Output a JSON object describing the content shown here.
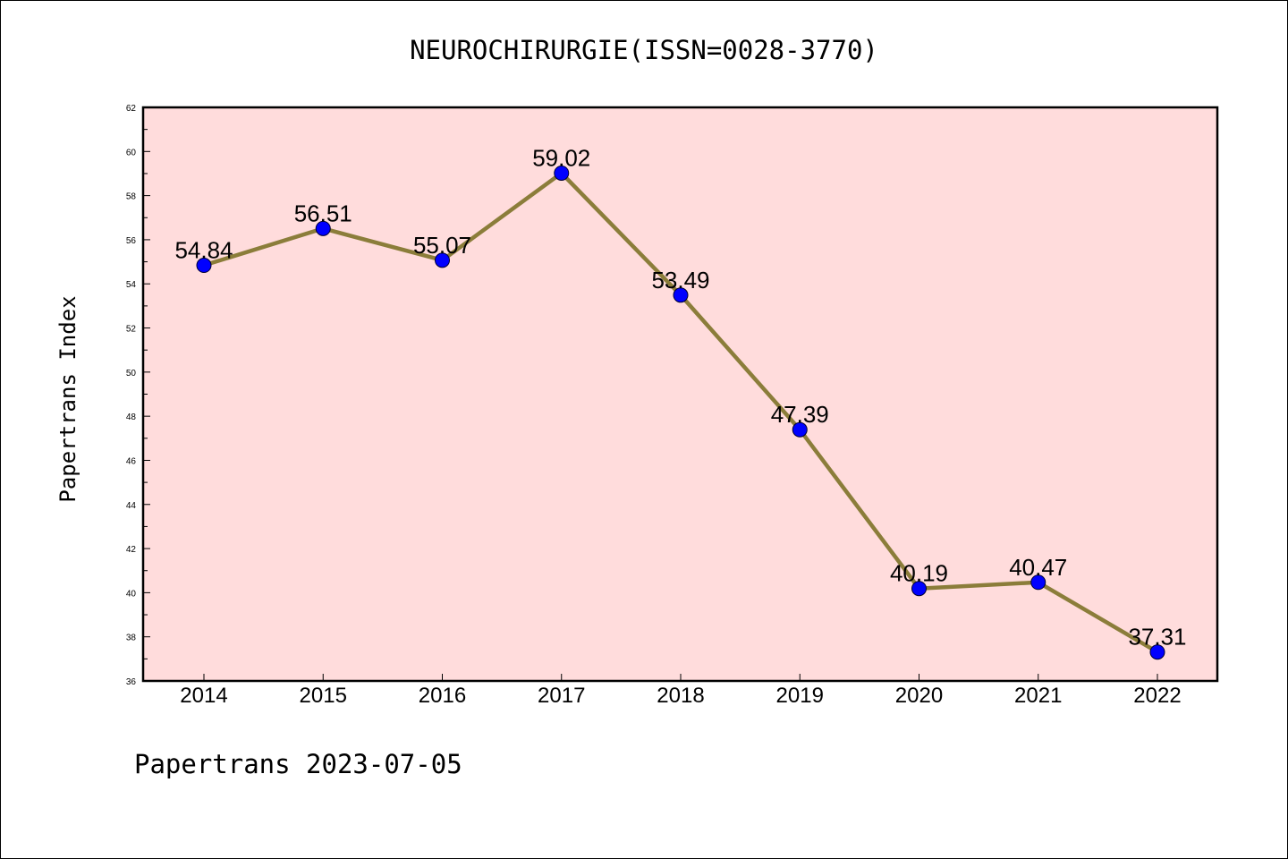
{
  "chart_data": {
    "type": "line",
    "title": "NEUROCHIRURGIE(ISSN=0028-3770)",
    "ylabel": "Papertrans Index",
    "xlabel": "",
    "x": [
      "2014",
      "2015",
      "2016",
      "2017",
      "2018",
      "2019",
      "2020",
      "2021",
      "2022"
    ],
    "series": [
      {
        "values": [
          54.84,
          56.51,
          55.07,
          59.02,
          53.49,
          47.39,
          40.19,
          40.47,
          37.31
        ],
        "labels": [
          "54.84",
          "56.51",
          "55.07",
          "59.02",
          "53.49",
          "47.39",
          "40.19",
          "40.47",
          "37.31"
        ],
        "line_color": "#8b7d3a",
        "marker_color": "#0000ff"
      }
    ],
    "ylim": [
      36,
      62
    ],
    "yticks": [
      "36",
      "38",
      "40",
      "42",
      "44",
      "46",
      "48",
      "50",
      "52",
      "54",
      "56",
      "58",
      "60",
      "62"
    ],
    "plot_background": "#ffdcdc",
    "grid": false,
    "legend": "none"
  },
  "footer": "Papertrans 2023-07-05"
}
